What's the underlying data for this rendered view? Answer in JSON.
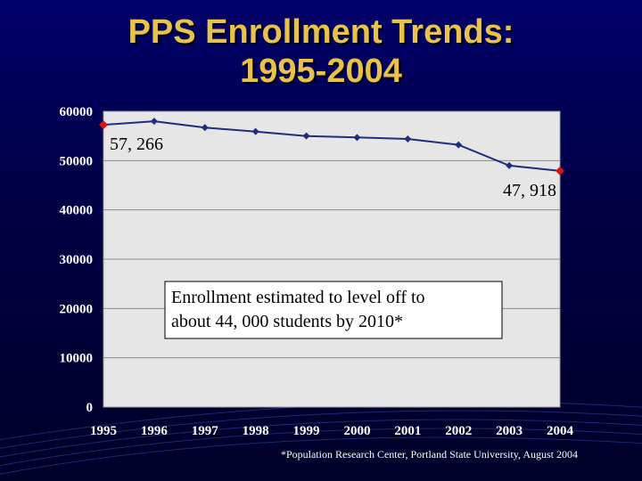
{
  "slide": {
    "title_line1": "PPS Enrollment Trends:",
    "title_line2": "1995-2004",
    "source_note": "*Population Research Center, Portland State University, August 2004"
  },
  "colors": {
    "title": "#e8c24a",
    "plot_bg": "#e6e6e6",
    "line": "#1f2e7a",
    "endpoint": "#e01010",
    "background": "#000050"
  },
  "chart_data": {
    "type": "line",
    "categories": [
      "1995",
      "1996",
      "1997",
      "1998",
      "1999",
      "2000",
      "2001",
      "2002",
      "2003",
      "2004"
    ],
    "series": [
      {
        "values": [
          57266,
          58000,
          56700,
          55900,
          55000,
          54700,
          54400,
          53200,
          49000,
          47918
        ]
      }
    ],
    "yticks": [
      "0",
      "10000",
      "20000",
      "30000",
      "40000",
      "50000",
      "60000"
    ],
    "ylim": [
      0,
      60000
    ],
    "grid": true,
    "data_labels": [
      {
        "index": 0,
        "text": "57, 266"
      },
      {
        "index": 9,
        "text": "47, 918"
      }
    ],
    "annotation": {
      "line1": "Enrollment estimated to level off to",
      "line2": "about 44, 000 students by 2010*"
    }
  }
}
